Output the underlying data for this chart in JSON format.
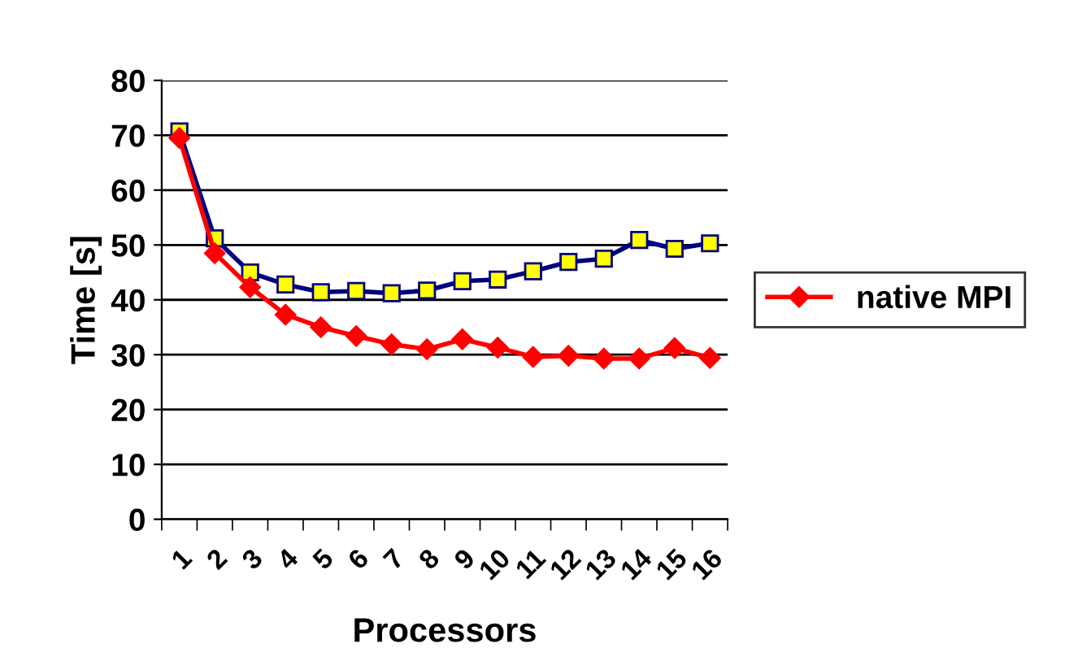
{
  "chart_data": {
    "type": "line",
    "xlabel": "Processors",
    "ylabel": "Time [s]",
    "categories": [
      "1",
      "2",
      "3",
      "4",
      "5",
      "6",
      "7",
      "8",
      "9",
      "10",
      "11",
      "12",
      "13",
      "14",
      "15",
      "16"
    ],
    "series": [
      {
        "name": "native MPI",
        "color": "#ff0000",
        "marker": "diamond",
        "values": [
          69.5,
          48.5,
          42.3,
          37.3,
          35,
          33.4,
          31.9,
          31,
          32.8,
          31.3,
          29.6,
          29.8,
          29.3,
          29.3,
          31.2,
          29.4
        ]
      },
      {
        "color": "#000080",
        "marker": "square",
        "values": [
          70.7,
          51.2,
          45,
          42.8,
          41.4,
          41.6,
          41.2,
          41.7,
          43.4,
          43.7,
          45.2,
          46.9,
          47.5,
          50.9,
          49.3,
          50.3
        ]
      }
    ],
    "ylim": [
      0,
      80
    ],
    "yticks": [
      0,
      10,
      20,
      30,
      40,
      50,
      60,
      70,
      80
    ],
    "grid": "y",
    "legend": "right"
  }
}
